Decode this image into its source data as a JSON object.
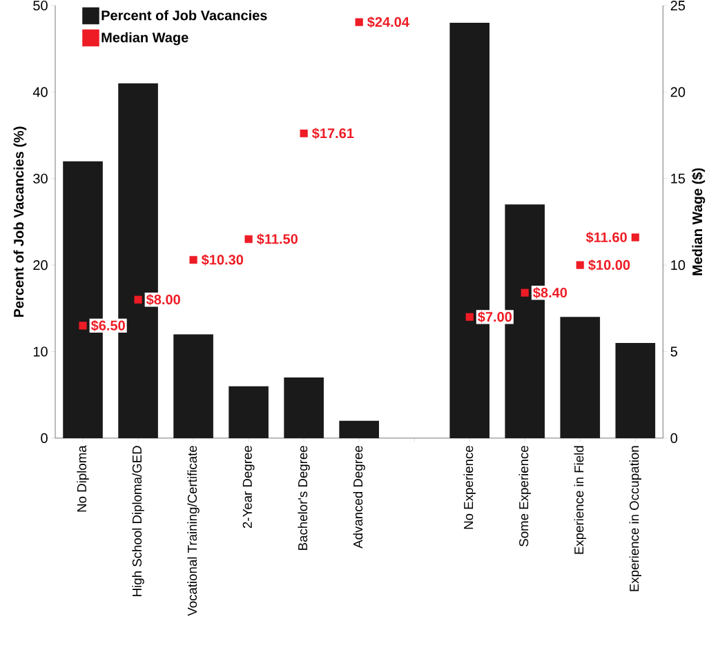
{
  "chart_data": {
    "type": "bar",
    "categories": [
      "No Diploma",
      "High School Diploma/GED",
      "Vocational Training/Certificate",
      "2-Year Degree",
      "Bachelor's Degree",
      "Advanced Degree",
      null,
      "No Experience",
      "Some Experience",
      "Experience in Field",
      "Experience in Occupation"
    ],
    "series": [
      {
        "name": "Percent of Job Vacancies",
        "color": "#1a1a1a",
        "values": [
          32,
          41,
          12,
          6,
          7,
          2,
          null,
          48,
          27,
          14,
          11
        ]
      },
      {
        "name": "Median Wage",
        "type": "scatter",
        "axis": "y2",
        "marker": "square",
        "color": "#ee1c25",
        "values": [
          6.5,
          8.0,
          10.3,
          11.5,
          17.61,
          24.04,
          null,
          7.0,
          8.4,
          10.0,
          11.6
        ],
        "value_labels": [
          "$6.50",
          "$8.00",
          "$10.30",
          "$11.50",
          "$17.61",
          "$24.04",
          null,
          "$7.00",
          "$8.40",
          "$10.00",
          "$11.60"
        ]
      }
    ],
    "ylabel": "Percent of Job Vacancies (%)",
    "y2label": "Median Wage ($)",
    "ylim": [
      0,
      50
    ],
    "yticks": [
      0,
      10,
      20,
      30,
      40,
      50
    ],
    "y2lim": [
      0,
      25
    ],
    "y2ticks": [
      0,
      5,
      10,
      15,
      20,
      25
    ],
    "legend": "top left"
  }
}
